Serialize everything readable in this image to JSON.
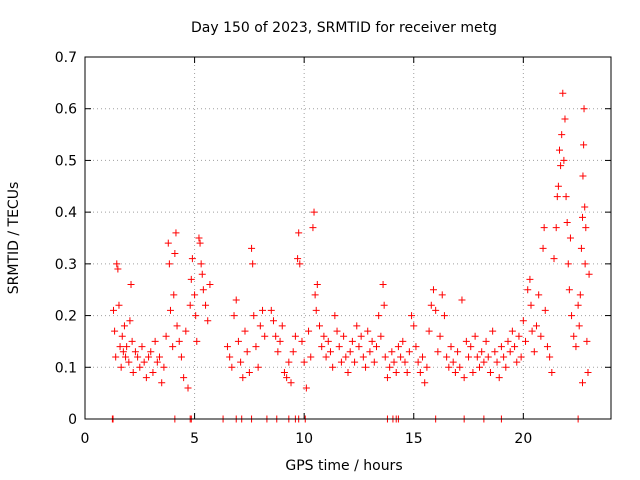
{
  "chart_data": {
    "type": "scatter",
    "title": "Day 150 of 2023, SRMTID for receiver metg",
    "xlabel": "GPS time / hours",
    "ylabel": "SRMTID / TECUs",
    "xlim": [
      0,
      24
    ],
    "ylim": [
      0,
      0.7
    ],
    "xticks": [
      0,
      5,
      10,
      15,
      20
    ],
    "yticks": [
      0,
      0.1,
      0.2,
      0.3,
      0.4,
      0.5,
      0.6,
      0.7
    ],
    "grid": true,
    "marker": "+",
    "series_color": "#ff0000",
    "points": [
      [
        1.3,
        0.21
      ],
      [
        1.35,
        0.17
      ],
      [
        1.4,
        0.12
      ],
      [
        1.45,
        0.3
      ],
      [
        1.5,
        0.29
      ],
      [
        1.55,
        0.22
      ],
      [
        1.6,
        0.14
      ],
      [
        1.65,
        0.1
      ],
      [
        1.7,
        0.16
      ],
      [
        1.75,
        0.13
      ],
      [
        1.8,
        0.18
      ],
      [
        1.85,
        0.12
      ],
      [
        1.9,
        0.14
      ],
      [
        2.0,
        0.11
      ],
      [
        2.05,
        0.19
      ],
      [
        2.1,
        0.26
      ],
      [
        2.15,
        0.15
      ],
      [
        2.2,
        0.09
      ],
      [
        2.3,
        0.13
      ],
      [
        2.4,
        0.12
      ],
      [
        2.5,
        0.1
      ],
      [
        2.6,
        0.14
      ],
      [
        2.7,
        0.11
      ],
      [
        2.8,
        0.08
      ],
      [
        2.9,
        0.12
      ],
      [
        3.0,
        0.13
      ],
      [
        3.1,
        0.09
      ],
      [
        3.2,
        0.15
      ],
      [
        3.3,
        0.11
      ],
      [
        3.4,
        0.12
      ],
      [
        3.5,
        0.07
      ],
      [
        3.6,
        0.1
      ],
      [
        3.7,
        0.16
      ],
      [
        3.8,
        0.34
      ],
      [
        3.85,
        0.3
      ],
      [
        3.9,
        0.21
      ],
      [
        4.0,
        0.14
      ],
      [
        4.05,
        0.24
      ],
      [
        4.1,
        0.32
      ],
      [
        4.15,
        0.36
      ],
      [
        4.2,
        0.18
      ],
      [
        4.3,
        0.15
      ],
      [
        4.4,
        0.12
      ],
      [
        4.5,
        0.08
      ],
      [
        4.6,
        0.17
      ],
      [
        4.7,
        0.06
      ],
      [
        4.8,
        0.22
      ],
      [
        4.85,
        0.27
      ],
      [
        4.9,
        0.31
      ],
      [
        5.0,
        0.24
      ],
      [
        5.05,
        0.2
      ],
      [
        5.1,
        0.15
      ],
      [
        5.2,
        0.35
      ],
      [
        5.25,
        0.34
      ],
      [
        5.3,
        0.3
      ],
      [
        5.35,
        0.28
      ],
      [
        5.4,
        0.25
      ],
      [
        5.5,
        0.22
      ],
      [
        5.6,
        0.19
      ],
      [
        5.7,
        0.26
      ],
      [
        6.5,
        0.14
      ],
      [
        6.6,
        0.12
      ],
      [
        6.7,
        0.1
      ],
      [
        6.8,
        0.2
      ],
      [
        6.9,
        0.23
      ],
      [
        7.0,
        0.15
      ],
      [
        7.1,
        0.11
      ],
      [
        7.2,
        0.08
      ],
      [
        7.3,
        0.17
      ],
      [
        7.4,
        0.13
      ],
      [
        7.5,
        0.09
      ],
      [
        7.6,
        0.33
      ],
      [
        7.65,
        0.3
      ],
      [
        7.7,
        0.2
      ],
      [
        7.8,
        0.14
      ],
      [
        7.9,
        0.1
      ],
      [
        8.0,
        0.18
      ],
      [
        8.1,
        0.21
      ],
      [
        8.2,
        0.16
      ],
      [
        8.5,
        0.21
      ],
      [
        8.6,
        0.19
      ],
      [
        8.7,
        0.16
      ],
      [
        8.8,
        0.13
      ],
      [
        8.9,
        0.15
      ],
      [
        9.0,
        0.18
      ],
      [
        9.1,
        0.09
      ],
      [
        9.2,
        0.08
      ],
      [
        9.3,
        0.11
      ],
      [
        9.4,
        0.07
      ],
      [
        9.5,
        0.13
      ],
      [
        9.6,
        0.16
      ],
      [
        9.7,
        0.31
      ],
      [
        9.75,
        0.36
      ],
      [
        9.8,
        0.3
      ],
      [
        9.9,
        0.15
      ],
      [
        10.0,
        0.11
      ],
      [
        10.1,
        0.06
      ],
      [
        10.2,
        0.17
      ],
      [
        10.3,
        0.12
      ],
      [
        10.4,
        0.37
      ],
      [
        10.45,
        0.4
      ],
      [
        10.5,
        0.24
      ],
      [
        10.55,
        0.21
      ],
      [
        10.6,
        0.26
      ],
      [
        10.7,
        0.18
      ],
      [
        10.8,
        0.14
      ],
      [
        10.9,
        0.16
      ],
      [
        11.0,
        0.12
      ],
      [
        11.1,
        0.15
      ],
      [
        11.2,
        0.13
      ],
      [
        11.3,
        0.1
      ],
      [
        11.4,
        0.2
      ],
      [
        11.5,
        0.17
      ],
      [
        11.6,
        0.14
      ],
      [
        11.7,
        0.11
      ],
      [
        11.8,
        0.16
      ],
      [
        11.9,
        0.12
      ],
      [
        12.0,
        0.09
      ],
      [
        12.1,
        0.13
      ],
      [
        12.2,
        0.15
      ],
      [
        12.3,
        0.11
      ],
      [
        12.4,
        0.18
      ],
      [
        12.5,
        0.14
      ],
      [
        12.6,
        0.16
      ],
      [
        12.7,
        0.12
      ],
      [
        12.8,
        0.1
      ],
      [
        12.9,
        0.17
      ],
      [
        13.0,
        0.13
      ],
      [
        13.1,
        0.15
      ],
      [
        13.2,
        0.11
      ],
      [
        13.3,
        0.14
      ],
      [
        13.4,
        0.2
      ],
      [
        13.5,
        0.16
      ],
      [
        13.6,
        0.26
      ],
      [
        13.65,
        0.22
      ],
      [
        13.7,
        0.12
      ],
      [
        13.8,
        0.08
      ],
      [
        13.9,
        0.1
      ],
      [
        14.0,
        0.13
      ],
      [
        14.1,
        0.11
      ],
      [
        14.2,
        0.09
      ],
      [
        14.3,
        0.14
      ],
      [
        14.4,
        0.12
      ],
      [
        14.5,
        0.15
      ],
      [
        14.6,
        0.11
      ],
      [
        14.7,
        0.09
      ],
      [
        14.8,
        0.13
      ],
      [
        14.9,
        0.2
      ],
      [
        15.0,
        0.18
      ],
      [
        15.1,
        0.14
      ],
      [
        15.2,
        0.11
      ],
      [
        15.3,
        0.09
      ],
      [
        15.4,
        0.12
      ],
      [
        15.5,
        0.07
      ],
      [
        15.6,
        0.1
      ],
      [
        15.7,
        0.17
      ],
      [
        15.8,
        0.22
      ],
      [
        15.9,
        0.25
      ],
      [
        16.0,
        0.21
      ],
      [
        16.1,
        0.13
      ],
      [
        16.2,
        0.16
      ],
      [
        16.3,
        0.24
      ],
      [
        16.4,
        0.2
      ],
      [
        16.5,
        0.12
      ],
      [
        16.6,
        0.1
      ],
      [
        16.7,
        0.14
      ],
      [
        16.8,
        0.11
      ],
      [
        16.9,
        0.09
      ],
      [
        17.0,
        0.13
      ],
      [
        17.1,
        0.1
      ],
      [
        17.2,
        0.23
      ],
      [
        17.3,
        0.08
      ],
      [
        17.4,
        0.15
      ],
      [
        17.5,
        0.12
      ],
      [
        17.6,
        0.14
      ],
      [
        17.7,
        0.09
      ],
      [
        17.8,
        0.16
      ],
      [
        17.9,
        0.12
      ],
      [
        18.0,
        0.1
      ],
      [
        18.1,
        0.13
      ],
      [
        18.2,
        0.11
      ],
      [
        18.3,
        0.15
      ],
      [
        18.4,
        0.12
      ],
      [
        18.5,
        0.09
      ],
      [
        18.6,
        0.17
      ],
      [
        18.7,
        0.13
      ],
      [
        18.8,
        0.11
      ],
      [
        18.9,
        0.08
      ],
      [
        19.0,
        0.14
      ],
      [
        19.1,
        0.12
      ],
      [
        19.2,
        0.1
      ],
      [
        19.3,
        0.15
      ],
      [
        19.4,
        0.13
      ],
      [
        19.5,
        0.17
      ],
      [
        19.6,
        0.14
      ],
      [
        19.7,
        0.11
      ],
      [
        19.8,
        0.16
      ],
      [
        19.9,
        0.12
      ],
      [
        20.0,
        0.19
      ],
      [
        20.1,
        0.15
      ],
      [
        20.2,
        0.25
      ],
      [
        20.3,
        0.27
      ],
      [
        20.35,
        0.22
      ],
      [
        20.4,
        0.17
      ],
      [
        20.5,
        0.13
      ],
      [
        20.6,
        0.18
      ],
      [
        20.7,
        0.24
      ],
      [
        20.8,
        0.16
      ],
      [
        20.9,
        0.33
      ],
      [
        20.95,
        0.37
      ],
      [
        21.0,
        0.21
      ],
      [
        21.1,
        0.14
      ],
      [
        21.2,
        0.12
      ],
      [
        21.3,
        0.09
      ],
      [
        21.4,
        0.31
      ],
      [
        21.5,
        0.37
      ],
      [
        21.55,
        0.43
      ],
      [
        21.6,
        0.45
      ],
      [
        21.65,
        0.52
      ],
      [
        21.7,
        0.49
      ],
      [
        21.75,
        0.55
      ],
      [
        21.8,
        0.63
      ],
      [
        21.85,
        0.5
      ],
      [
        21.9,
        0.58
      ],
      [
        21.95,
        0.43
      ],
      [
        22.0,
        0.38
      ],
      [
        22.05,
        0.3
      ],
      [
        22.1,
        0.25
      ],
      [
        22.15,
        0.35
      ],
      [
        22.2,
        0.2
      ],
      [
        22.3,
        0.16
      ],
      [
        22.4,
        0.14
      ],
      [
        22.5,
        0.22
      ],
      [
        22.55,
        0.18
      ],
      [
        22.6,
        0.24
      ],
      [
        22.65,
        0.33
      ],
      [
        22.7,
        0.39
      ],
      [
        22.72,
        0.47
      ],
      [
        22.75,
        0.53
      ],
      [
        22.77,
        0.6
      ],
      [
        22.8,
        0.41
      ],
      [
        22.82,
        0.3
      ],
      [
        22.85,
        0.37
      ],
      [
        22.9,
        0.15
      ],
      [
        22.95,
        0.09
      ],
      [
        22.7,
        0.07
      ],
      [
        23.0,
        0.28
      ],
      [
        1.25,
        0.0
      ],
      [
        1.28,
        0.0
      ],
      [
        4.1,
        0.0
      ],
      [
        4.8,
        0.0
      ],
      [
        4.85,
        0.0
      ],
      [
        6.3,
        0.0
      ],
      [
        6.9,
        0.0
      ],
      [
        7.15,
        0.0
      ],
      [
        7.6,
        0.0
      ],
      [
        8.3,
        0.0
      ],
      [
        8.75,
        0.0
      ],
      [
        9.3,
        0.0
      ],
      [
        9.6,
        0.0
      ],
      [
        9.75,
        0.0
      ],
      [
        10.05,
        0.0
      ],
      [
        13.8,
        0.0
      ],
      [
        14.05,
        0.0
      ],
      [
        14.2,
        0.0
      ],
      [
        14.3,
        0.0
      ],
      [
        16.0,
        0.0
      ],
      [
        17.3,
        0.0
      ],
      [
        18.2,
        0.0
      ],
      [
        19.0,
        0.0
      ],
      [
        22.5,
        0.0
      ]
    ]
  }
}
